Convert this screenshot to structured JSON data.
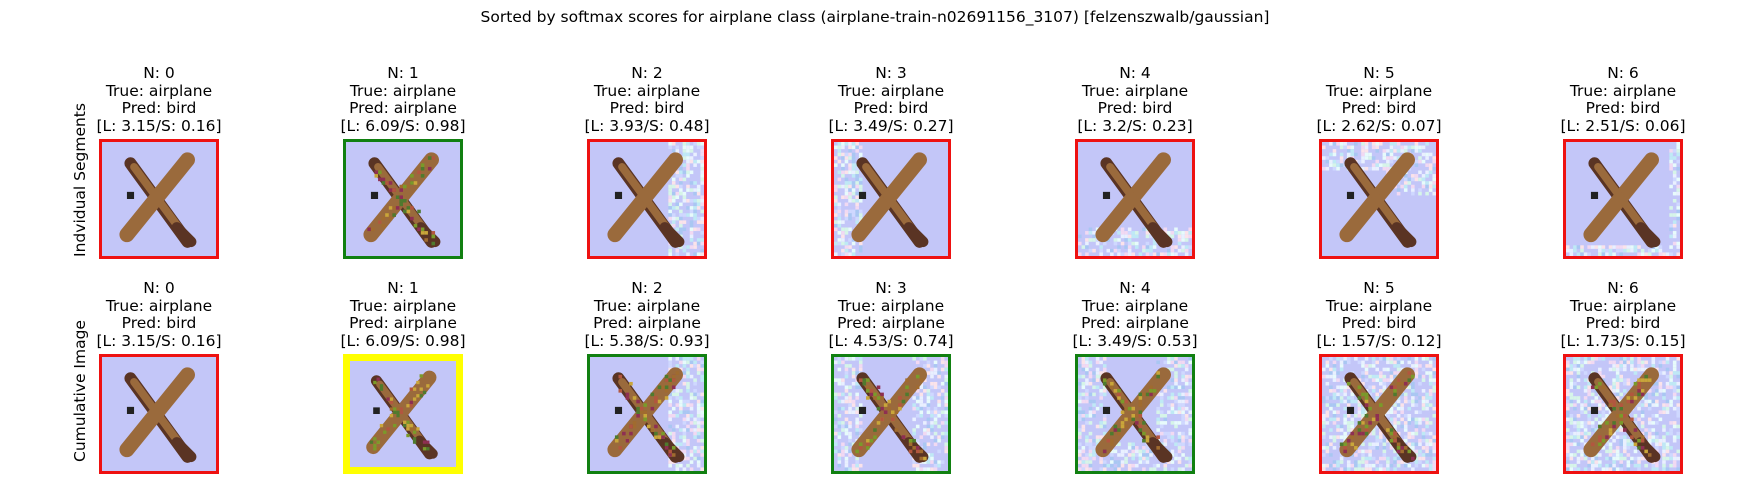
{
  "title": "Sorted by softmax scores for airplane class (airplane-train-n02691156_3107) [felzenszwalb/gaussian]",
  "colors": {
    "red": "#ee1111",
    "green": "#118011",
    "yellow": "#ffff00",
    "sky": "#c3c6f8",
    "plane_body": "#9a6a3c",
    "plane_dark": "#5a3424"
  },
  "rows": [
    {
      "label": "Indvidual Segments",
      "panels": [
        {
          "n": "N: 0",
          "true": "True: airplane",
          "pred": "Pred: bird",
          "scores": "[L: 3.15/S: 0.16]",
          "border": "red",
          "noise": "none"
        },
        {
          "n": "N: 1",
          "true": "True: airplane",
          "pred": "Pred: airplane",
          "scores": "[L: 6.09/S: 0.98]",
          "border": "green",
          "noise": "body"
        },
        {
          "n": "N: 2",
          "true": "True: airplane",
          "pred": "Pred: bird",
          "scores": "[L: 3.93/S: 0.48]",
          "border": "red",
          "noise": "right"
        },
        {
          "n": "N: 3",
          "true": "True: airplane",
          "pred": "Pred: bird",
          "scores": "[L: 3.49/S: 0.27]",
          "border": "red",
          "noise": "left"
        },
        {
          "n": "N: 4",
          "true": "True: airplane",
          "pred": "Pred: bird",
          "scores": "[L: 3.2/S: 0.23]",
          "border": "red",
          "noise": "bottom"
        },
        {
          "n": "N: 5",
          "true": "True: airplane",
          "pred": "Pred: bird",
          "scores": "[L: 2.62/S: 0.07]",
          "border": "red",
          "noise": "top"
        },
        {
          "n": "N: 6",
          "true": "True: airplane",
          "pred": "Pred: bird",
          "scores": "[L: 2.51/S: 0.06]",
          "border": "red",
          "noise": "edge"
        }
      ]
    },
    {
      "label": "Cumulative Image",
      "panels": [
        {
          "n": "N: 0",
          "true": "True: airplane",
          "pred": "Pred: bird",
          "scores": "[L: 3.15/S: 0.16]",
          "border": "red",
          "noise": "none"
        },
        {
          "n": "N: 1",
          "true": "True: airplane",
          "pred": "Pred: airplane",
          "scores": "[L: 6.09/S: 0.98]",
          "border": "yellow",
          "noise": "body"
        },
        {
          "n": "N: 2",
          "true": "True: airplane",
          "pred": "Pred: airplane",
          "scores": "[L: 5.38/S: 0.93]",
          "border": "green",
          "noise": "body+right"
        },
        {
          "n": "N: 3",
          "true": "True: airplane",
          "pred": "Pred: airplane",
          "scores": "[L: 4.53/S: 0.74]",
          "border": "green",
          "noise": "body+right+left"
        },
        {
          "n": "N: 4",
          "true": "True: airplane",
          "pred": "Pred: airplane",
          "scores": "[L: 3.49/S: 0.53]",
          "border": "green",
          "noise": "body+right+left+bottom"
        },
        {
          "n": "N: 5",
          "true": "True: airplane",
          "pred": "Pred: bird",
          "scores": "[L: 1.57/S: 0.12]",
          "border": "red",
          "noise": "all"
        },
        {
          "n": "N: 6",
          "true": "True: airplane",
          "pred": "Pred: bird",
          "scores": "[L: 1.73/S: 0.15]",
          "border": "red",
          "noise": "all"
        }
      ]
    }
  ]
}
